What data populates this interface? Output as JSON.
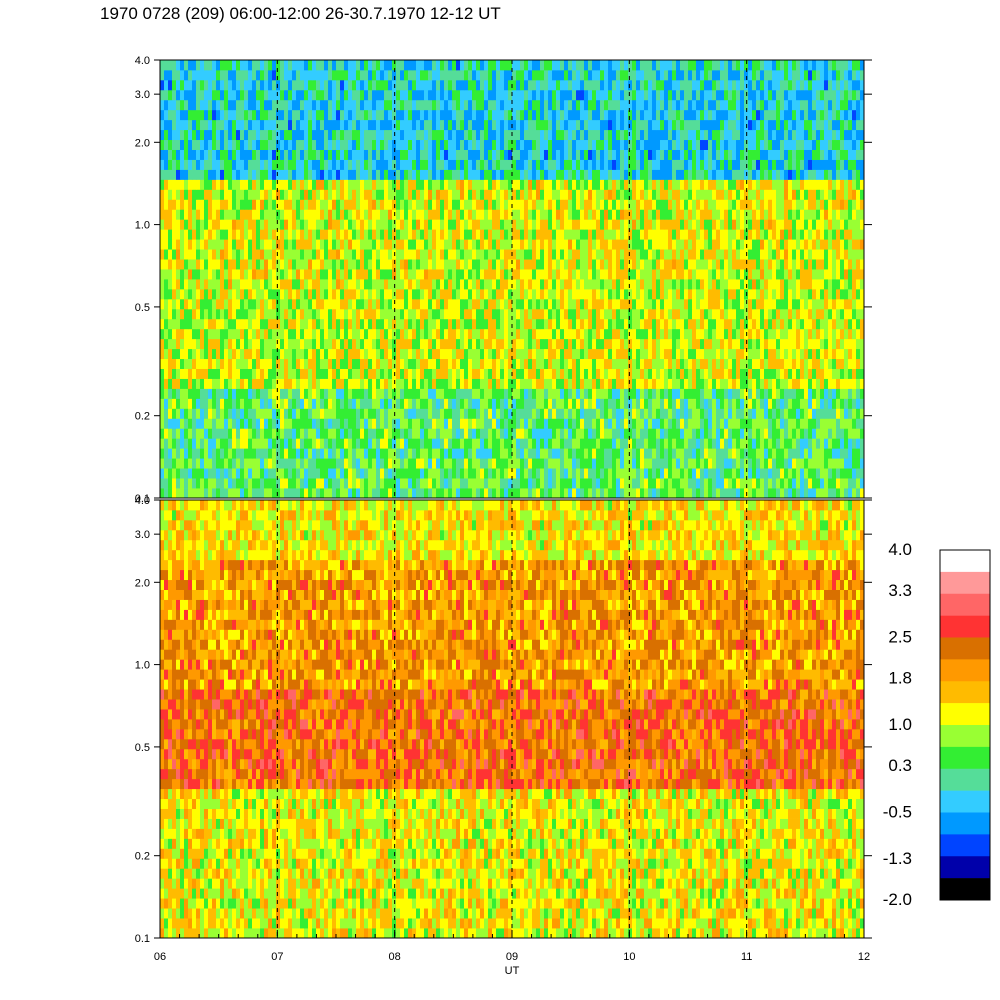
{
  "title": "1970 0728 (209) 06:00-12:00 26-30.7.1970  12-12 UT",
  "chart_data": {
    "type": "heatmap",
    "title": "1970 0728 (209) 06:00-12:00 26-30.7.1970  12-12 UT",
    "xlabel": "UT",
    "ylabel": "",
    "x_ticks": [
      "06",
      "07",
      "08",
      "09",
      "10",
      "11",
      "12"
    ],
    "x_range": [
      6,
      12
    ],
    "y_scale": "log",
    "y_range": [
      0.1,
      4.0
    ],
    "y_ticks": [
      "0.1",
      "0.2",
      "0.5",
      "1.0",
      "2.0",
      "3.0",
      "4.0"
    ],
    "dashed_gridlines_x": [
      7,
      8,
      9,
      10,
      11
    ],
    "panels": [
      {
        "name": "upper",
        "description_levels": [
          {
            "y_band": [
              0.1,
              0.25
            ],
            "level": 0.4
          },
          {
            "y_band": [
              0.25,
              0.6
            ],
            "level": 1.0
          },
          {
            "y_band": [
              0.6,
              1.5
            ],
            "level": 1.1
          },
          {
            "y_band": [
              1.5,
              4.0
            ],
            "level": -0.2
          }
        ]
      },
      {
        "name": "lower",
        "description_levels": [
          {
            "y_band": [
              0.1,
              0.35
            ],
            "level": 1.2
          },
          {
            "y_band": [
              0.35,
              0.8
            ],
            "level": 2.3
          },
          {
            "y_band": [
              0.8,
              2.5
            ],
            "level": 1.9
          },
          {
            "y_band": [
              2.5,
              4.0
            ],
            "level": 1.3
          }
        ]
      }
    ],
    "colorbar": {
      "labels": [
        "4.0",
        "3.3",
        "2.5",
        "1.8",
        "1.0",
        "0.3",
        "-0.5",
        "-1.3",
        "-2.0"
      ],
      "colors": [
        "#ffffff",
        "#ff9999",
        "#ff6666",
        "#ff3333",
        "#d97000",
        "#ff9900",
        "#ffbb00",
        "#ffff00",
        "#99ff33",
        "#33ee33",
        "#55dd99",
        "#33ccff",
        "#0099ff",
        "#0044ff",
        "#0000aa",
        "#000000"
      ],
      "range": [
        -2.0,
        4.0
      ]
    }
  }
}
